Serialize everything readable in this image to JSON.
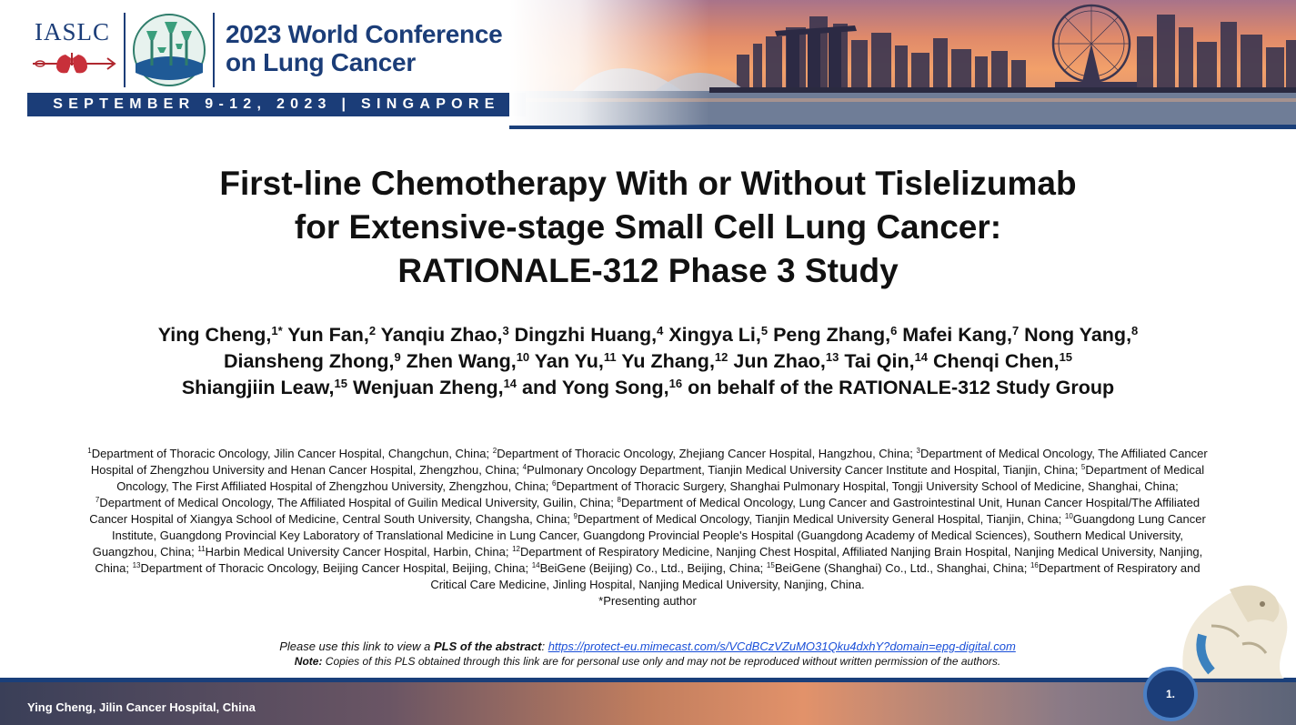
{
  "header": {
    "org": "IASLC",
    "conference_title_line1": "2023 World Conference",
    "conference_title_line2": "on Lung Cancer",
    "date_location": "SEPTEMBER 9-12, 2023 | SINGAPORE"
  },
  "title": {
    "line1": "First-line Chemotherapy With or Without Tislelizumab",
    "line2": "for Extensive-stage Small Cell Lung Cancer:",
    "line3": "RATIONALE-312 Phase 3 Study"
  },
  "authors": [
    {
      "name": "Ying Cheng,",
      "sup": "1*"
    },
    {
      "name": " Yun Fan,",
      "sup": "2"
    },
    {
      "name": " Yanqiu Zhao,",
      "sup": "3"
    },
    {
      "name": " Dingzhi Huang,",
      "sup": "4"
    },
    {
      "name": " Xingya Li,",
      "sup": "5"
    },
    {
      "name": " Peng Zhang,",
      "sup": "6"
    },
    {
      "name": " Mafei Kang,",
      "sup": "7"
    },
    {
      "name": " Nong Yang,",
      "sup": "8"
    },
    {
      "name": "Diansheng Zhong,",
      "sup": "9",
      "break_before": true
    },
    {
      "name": " Zhen Wang,",
      "sup": "10"
    },
    {
      "name": " Yan Yu,",
      "sup": "11"
    },
    {
      "name": " Yu Zhang,",
      "sup": "12"
    },
    {
      "name": " Jun Zhao,",
      "sup": "13"
    },
    {
      "name": " Tai Qin,",
      "sup": "14"
    },
    {
      "name": " Chenqi Chen,",
      "sup": "15"
    },
    {
      "name": "Shiangjiin Leaw,",
      "sup": "15",
      "break_before": true
    },
    {
      "name": " Wenjuan Zheng,",
      "sup": "14"
    },
    {
      "name": " and Yong Song,",
      "sup": "16"
    },
    {
      "name": " on behalf of the RATIONALE-312 Study Group",
      "sup": ""
    }
  ],
  "affiliations": [
    {
      "sup": "1",
      "text": "Department of Thoracic Oncology, Jilin Cancer Hospital, Changchun, China; "
    },
    {
      "sup": "2",
      "text": "Department of Thoracic Oncology, Zhejiang Cancer Hospital, Hangzhou, China; "
    },
    {
      "sup": "3",
      "text": "Department of Medical Oncology, The Affiliated Cancer Hospital of Zhengzhou University and Henan Cancer Hospital, Zhengzhou, China; "
    },
    {
      "sup": "4",
      "text": "Pulmonary Oncology Department, Tianjin Medical University Cancer Institute and Hospital, Tianjin, China; "
    },
    {
      "sup": "5",
      "text": "Department of Medical Oncology, The First Affiliated Hospital of Zhengzhou University, Zhengzhou, China; "
    },
    {
      "sup": "6",
      "text": "Department of Thoracic Surgery, Shanghai Pulmonary Hospital, Tongji University School of Medicine, Shanghai, China; "
    },
    {
      "sup": "7",
      "text": "Department of Medical Oncology, The Affiliated Hospital of Guilin Medical University, Guilin, China; "
    },
    {
      "sup": "8",
      "text": "Department of Medical Oncology, Lung Cancer and Gastrointestinal Unit, Hunan Cancer Hospital/The Affiliated Cancer Hospital of Xiangya School of Medicine, Central South University, Changsha, China; "
    },
    {
      "sup": "9",
      "text": "Department of Medical Oncology, Tianjin Medical University General Hospital, Tianjin, China; "
    },
    {
      "sup": "10",
      "text": "Guangdong Lung Cancer Institute, Guangdong Provincial Key Laboratory of Translational Medicine in Lung Cancer, Guangdong Provincial People's Hospital (Guangdong Academy of Medical Sciences), Southern Medical University, Guangzhou, China; "
    },
    {
      "sup": "11",
      "text": "Harbin Medical University Cancer Hospital, Harbin, China; "
    },
    {
      "sup": "12",
      "text": "Department of Respiratory Medicine, Nanjing Chest Hospital, Affiliated Nanjing Brain Hospital, Nanjing Medical University, Nanjing, China; "
    },
    {
      "sup": "13",
      "text": "Department of Thoracic Oncology, Beijing Cancer Hospital, Beijing, China; "
    },
    {
      "sup": "14",
      "text": "BeiGene (Beijing) Co., Ltd., Beijing, China; "
    },
    {
      "sup": "15",
      "text": "BeiGene (Shanghai) Co., Ltd., Shanghai, China; "
    },
    {
      "sup": "16",
      "text": "Department of Respiratory and Critical Care Medicine, Jinling Hospital, Nanjing Medical University, Nanjing, China."
    }
  ],
  "presenting_note": "*Presenting author",
  "pls": {
    "prefix": "Please use this link to view a ",
    "bold": "PLS of the abstract",
    "colon": ": ",
    "url": "https://protect-eu.mimecast.com/s/VCdBCzVZuMO31Qku4dxhY?domain=epg-digital.com",
    "note_label": "Note:",
    "note_text": " Copies of this PLS obtained through this link are for personal use only and may not be reproduced without written permission of the authors."
  },
  "footer": {
    "presenter": "Ying Cheng, Jilin Cancer Hospital, China",
    "page_number": "1."
  },
  "colors": {
    "brand_navy": "#1b3d78",
    "link_blue": "#1a4fd8"
  },
  "icons": [
    "lung-logo-icon",
    "supertree-garden-icon",
    "merlion-icon",
    "singapore-skyline-image"
  ]
}
